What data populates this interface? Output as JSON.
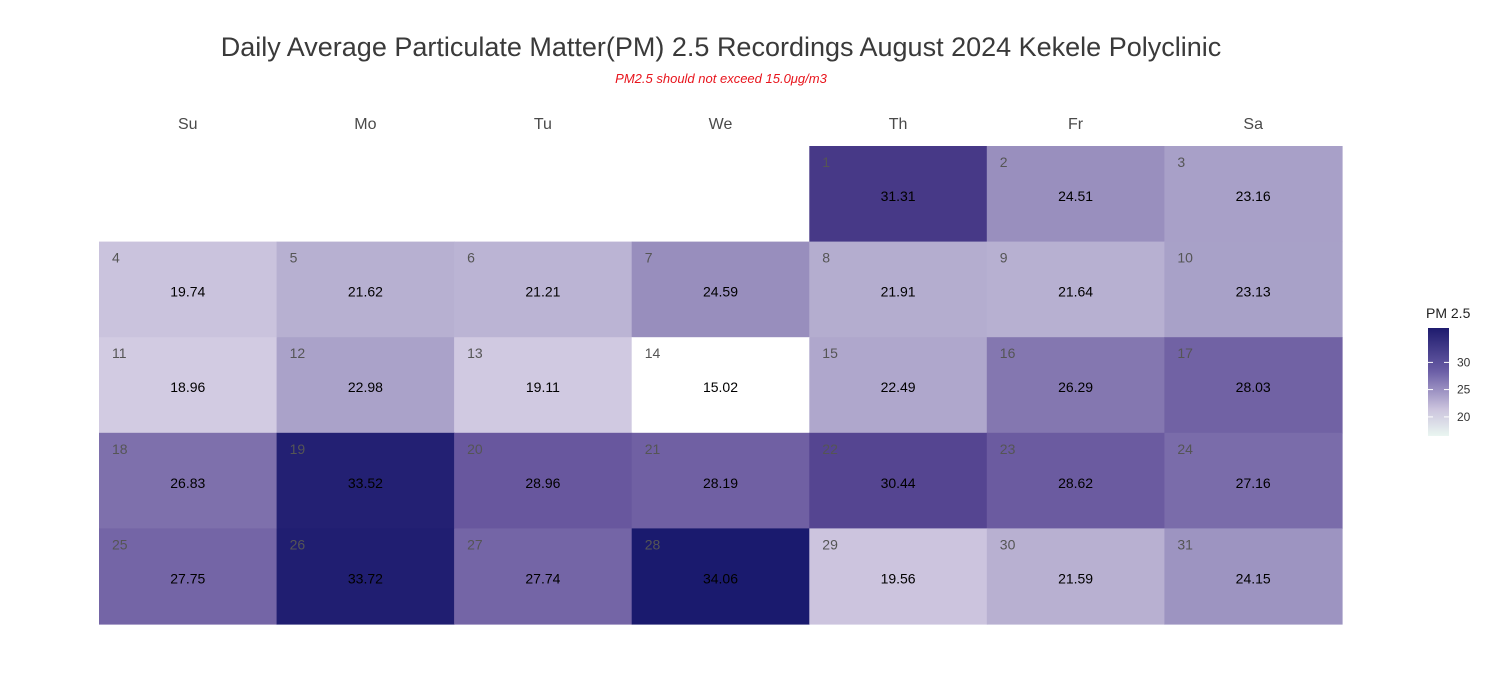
{
  "title": "Daily Average Particulate Matter(PM) 2.5 Recordings August 2024 Kekele Polyclinic",
  "subtitle": "PM2.5 should not exceed 15.0μg/m3",
  "chart_data": {
    "type": "heatmap",
    "layout": "calendar",
    "month": "August 2024",
    "weekdays": [
      "Su",
      "Mo",
      "Tu",
      "We",
      "Th",
      "Fr",
      "Sa"
    ],
    "first_weekday_index": 4,
    "days": [
      1,
      2,
      3,
      4,
      5,
      6,
      7,
      8,
      9,
      10,
      11,
      12,
      13,
      14,
      15,
      16,
      17,
      18,
      19,
      20,
      21,
      22,
      23,
      24,
      25,
      26,
      27,
      28,
      29,
      30,
      31
    ],
    "values": [
      31.31,
      24.51,
      23.16,
      19.74,
      21.62,
      21.21,
      24.59,
      21.91,
      21.64,
      23.13,
      18.96,
      22.98,
      19.11,
      15.02,
      22.49,
      26.29,
      28.03,
      26.83,
      33.52,
      28.96,
      28.19,
      30.44,
      28.62,
      27.16,
      27.75,
      33.72,
      27.74,
      34.06,
      19.56,
      21.59,
      24.15
    ],
    "legend": {
      "title": "PM 2.5",
      "ticks": [
        20,
        25,
        30
      ],
      "range": [
        15.02,
        34.06
      ],
      "color_low": "#ffffff",
      "color_high": "#1a1a6e"
    }
  }
}
